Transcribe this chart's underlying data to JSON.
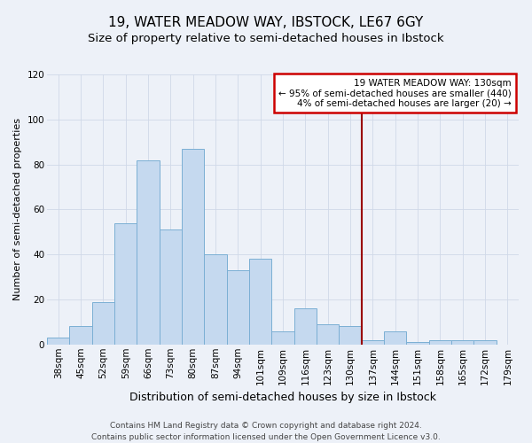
{
  "title": "19, WATER MEADOW WAY, IBSTOCK, LE67 6GY",
  "subtitle": "Size of property relative to semi-detached houses in Ibstock",
  "xlabel": "Distribution of semi-detached houses by size in Ibstock",
  "ylabel": "Number of semi-detached properties",
  "categories": [
    "38sqm",
    "45sqm",
    "52sqm",
    "59sqm",
    "66sqm",
    "73sqm",
    "80sqm",
    "87sqm",
    "94sqm",
    "101sqm",
    "109sqm",
    "116sqm",
    "123sqm",
    "130sqm",
    "137sqm",
    "144sqm",
    "151sqm",
    "158sqm",
    "165sqm",
    "172sqm",
    "179sqm"
  ],
  "values": [
    3,
    8,
    19,
    54,
    82,
    51,
    87,
    40,
    33,
    38,
    6,
    16,
    9,
    8,
    2,
    6,
    1,
    2,
    2,
    2,
    0
  ],
  "bar_color": "#c5d9ef",
  "bar_edge_color": "#7bafd4",
  "background_color": "#edf1f8",
  "grid_color": "#d0d8e8",
  "vline_color": "#990000",
  "legend_text_line1": "19 WATER MEADOW WAY: 130sqm",
  "legend_text_line2": "← 95% of semi-detached houses are smaller (440)",
  "legend_text_line3": "4% of semi-detached houses are larger (20) →",
  "legend_box_color": "#cc0000",
  "footer": "Contains HM Land Registry data © Crown copyright and database right 2024.\nContains public sector information licensed under the Open Government Licence v3.0.",
  "ylim": [
    0,
    120
  ],
  "title_fontsize": 11,
  "subtitle_fontsize": 9.5,
  "xlabel_fontsize": 9,
  "ylabel_fontsize": 8,
  "tick_fontsize": 7.5,
  "footer_fontsize": 6.5,
  "legend_fontsize": 7.5
}
